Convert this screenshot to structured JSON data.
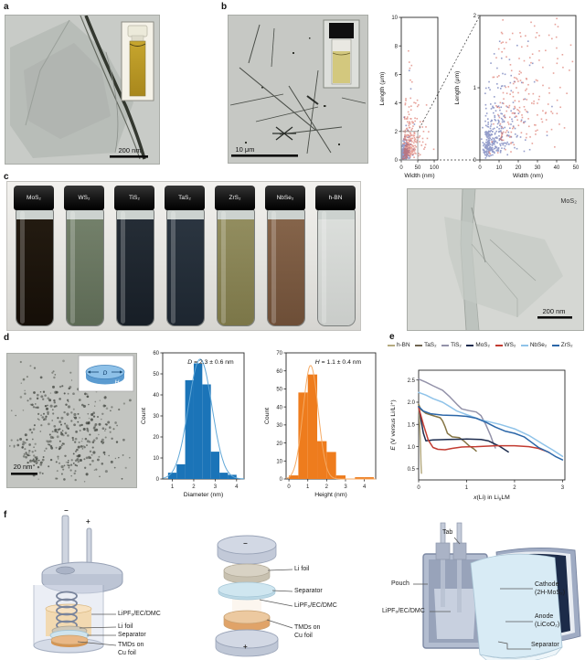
{
  "panels": {
    "a": {
      "letter": "a",
      "scale_bar": "200 nm"
    },
    "b": {
      "letter": "b",
      "scale_bar": "10 μm"
    },
    "c": {
      "letter": "c",
      "vials": [
        {
          "label": "MoS₂",
          "liquid": "#231b11",
          "liquid2": "#150e07"
        },
        {
          "label": "WS₂",
          "liquid": "#73806a",
          "liquid2": "#5c6954"
        },
        {
          "label": "TiS₂",
          "liquid": "#252d36",
          "liquid2": "#171e26"
        },
        {
          "label": "TaS₂",
          "liquid": "#2b3540",
          "liquid2": "#1d2630"
        },
        {
          "label": "ZrS₂",
          "liquid": "#928d5f",
          "liquid2": "#7b7648"
        },
        {
          "label": "NbSe₂",
          "liquid": "#85644a",
          "liquid2": "#6d4e37"
        },
        {
          "label": "h-BN",
          "liquid": "#dbdedb",
          "liquid2": "#c9ccc9"
        }
      ],
      "tem_label": "MoS₂",
      "tem_scale_bar": "200 nm"
    },
    "d": {
      "letter": "d",
      "scale_bar": "20 nm",
      "inset": {
        "diameter": "D",
        "height": "H"
      }
    },
    "e": {
      "letter": "e",
      "legend": [
        {
          "label": "h-BN",
          "color": "#b5aa80"
        },
        {
          "label": "TaS₂",
          "color": "#6f6450"
        },
        {
          "label": "TiS₂",
          "color": "#9392a9"
        },
        {
          "label": "MoS₂",
          "color": "#1d2c4e"
        },
        {
          "label": "WS₂",
          "color": "#c23b31"
        },
        {
          "label": "NbSe₂",
          "color": "#8fc3e9"
        },
        {
          "label": "ZrS₂",
          "color": "#2b66a8"
        }
      ]
    },
    "f": {
      "letter": "f",
      "minus": "−",
      "plus": "+",
      "electrolyte": "LiPF₆/EC/DMC",
      "li_foil": "Li foil",
      "separator": "Separator",
      "tmds_line1": "TMDs on",
      "tmds_line2": "Cu foil",
      "tab": "Tab",
      "pouch": "Pouch",
      "cathode_line1": "Cathode",
      "cathode_line2": "(2H-MoS₂)",
      "anode_line1": "Anode",
      "anode_line2": "(LiCoO₂)"
    }
  },
  "chart_data": [
    {
      "id": "scatter-left",
      "type": "scatter",
      "xlabel": "Width (nm)",
      "ylabel": "Length (μm)",
      "xlim": [
        0,
        111
      ],
      "ylim": [
        0,
        10
      ],
      "xticks": [
        0,
        50,
        100
      ],
      "yticks": [
        0,
        2,
        4,
        6,
        8,
        10
      ],
      "series": [
        {
          "name": "short-narrow",
          "color": "#3f4fa1",
          "n": 330,
          "seed": 11,
          "width_median_nm": 7,
          "width_log_sigma": 0.6,
          "length_median_um": 0.3,
          "length_log_sigma": 0.7,
          "corr_exp": 0.5
        },
        {
          "name": "long-wide",
          "color": "#d4584a",
          "n": 270,
          "seed": 23,
          "width_median_nm": 22,
          "width_log_sigma": 0.55,
          "length_median_um": 1.0,
          "length_log_sigma": 0.8,
          "corr_exp": 0.45
        }
      ],
      "zoom_box": {
        "x": [
          0,
          50
        ],
        "y": [
          0,
          2
        ]
      }
    },
    {
      "id": "scatter-right",
      "type": "scatter",
      "xlabel": "Width (nm)",
      "ylabel": "Length (μm)",
      "xlim": [
        0,
        50
      ],
      "ylim": [
        0,
        2
      ],
      "xticks": [
        0,
        10,
        20,
        30,
        40,
        50
      ],
      "yticks": [
        0,
        1,
        2
      ],
      "series_from": "scatter-left"
    },
    {
      "id": "hist-diameter",
      "type": "bar",
      "color": "#1b74b8",
      "curve_color": "#61a7d7",
      "xlabel": "Diameter (nm)",
      "ylabel": "Count",
      "xlim": [
        0.55,
        4.35
      ],
      "ylim": [
        0,
        60
      ],
      "xticks": [
        1,
        2,
        3,
        4
      ],
      "yticks": [
        0,
        10,
        20,
        30,
        40,
        50,
        60
      ],
      "bin_start": 0.8,
      "bin_width": 0.4,
      "counts": [
        3,
        7,
        47,
        55,
        45,
        13,
        3,
        2
      ],
      "gauss": {
        "amp": 57,
        "mean": 2.3,
        "sd": 0.55
      },
      "annotation": [
        {
          "t": "D",
          "i": 1
        },
        {
          "t": " = 2.3 ± 0.6 nm"
        }
      ]
    },
    {
      "id": "hist-height",
      "type": "bar",
      "color": "#ee7c1d",
      "curve_color": "#f5aa64",
      "xlabel": "Height (nm)",
      "ylabel": "Count",
      "xlim": [
        -0.15,
        4.6
      ],
      "ylim": [
        0,
        70
      ],
      "xticks": [
        0,
        1,
        2,
        3,
        4
      ],
      "yticks": [
        0,
        10,
        20,
        30,
        40,
        50,
        60,
        70
      ],
      "bin_start": 0,
      "bin_width": 0.5,
      "counts": [
        2,
        48,
        58,
        21,
        15,
        2,
        0,
        1,
        1
      ],
      "gauss": {
        "amp": 63,
        "mean": 1.15,
        "sd": 0.4
      },
      "annotation": [
        {
          "t": "H",
          "i": 1
        },
        {
          "t": " = 1.1 ± 0.4 nm"
        }
      ]
    },
    {
      "id": "voltage",
      "type": "line",
      "xlabel_parts": [
        {
          "t": "x",
          "i": 1
        },
        {
          "t": "(Li) in Li"
        },
        {
          "t": "x",
          "sub": 1
        },
        {
          "t": "LM"
        }
      ],
      "ylabel_parts": [
        {
          "t": "E",
          "i": 1
        },
        {
          "t": " (V versus Li/Li⁺)"
        }
      ],
      "xlim": [
        0,
        3.05
      ],
      "ylim": [
        0.25,
        2.72
      ],
      "xticks": [
        0,
        1,
        2,
        3
      ],
      "yticks": [
        0.5,
        1.0,
        1.5,
        2.0,
        2.5
      ],
      "ydecimals": 1,
      "series": [
        {
          "name": "h-BN",
          "color": "#b5aa80",
          "points": [
            [
              0,
              1.93
            ],
            [
              0.02,
              1.6
            ],
            [
              0.04,
              1.0
            ],
            [
              0.05,
              0.6
            ],
            [
              0.06,
              0.4
            ]
          ]
        },
        {
          "name": "TaS₂",
          "color": "#857545",
          "points": [
            [
              0,
              1.95
            ],
            [
              0.05,
              1.83
            ],
            [
              0.15,
              1.75
            ],
            [
              0.3,
              1.7
            ],
            [
              0.45,
              1.65
            ],
            [
              0.5,
              1.58
            ],
            [
              0.55,
              1.45
            ],
            [
              0.6,
              1.3
            ],
            [
              0.7,
              1.22
            ],
            [
              0.85,
              1.2
            ],
            [
              0.95,
              1.12
            ],
            [
              1.05,
              1.02
            ],
            [
              1.15,
              0.95
            ],
            [
              1.2,
              0.9
            ]
          ]
        },
        {
          "name": "TiS₂",
          "color": "#9392a9",
          "points": [
            [
              0,
              2.52
            ],
            [
              0.15,
              2.45
            ],
            [
              0.3,
              2.37
            ],
            [
              0.5,
              2.27
            ],
            [
              0.65,
              2.12
            ],
            [
              0.8,
              1.95
            ],
            [
              0.9,
              1.85
            ],
            [
              1.05,
              1.81
            ],
            [
              1.2,
              1.78
            ],
            [
              1.3,
              1.7
            ],
            [
              1.4,
              1.5
            ],
            [
              1.5,
              1.25
            ],
            [
              1.55,
              1.1
            ],
            [
              1.6,
              0.97
            ]
          ]
        },
        {
          "name": "MoS₂",
          "color": "#1d2c4e",
          "points": [
            [
              0,
              1.9
            ],
            [
              0.05,
              1.6
            ],
            [
              0.1,
              1.3
            ],
            [
              0.15,
              1.13
            ],
            [
              0.3,
              1.15
            ],
            [
              0.6,
              1.16
            ],
            [
              1.0,
              1.17
            ],
            [
              1.3,
              1.16
            ],
            [
              1.45,
              1.13
            ],
            [
              1.55,
              1.08
            ],
            [
              1.7,
              1.0
            ],
            [
              1.8,
              0.93
            ],
            [
              1.87,
              0.88
            ]
          ]
        },
        {
          "name": "WS₂",
          "color": "#c23b31",
          "points": [
            [
              0,
              1.88
            ],
            [
              0.1,
              1.5
            ],
            [
              0.2,
              1.15
            ],
            [
              0.3,
              0.98
            ],
            [
              0.4,
              0.94
            ],
            [
              0.55,
              0.93
            ],
            [
              0.7,
              0.96
            ],
            [
              0.9,
              0.99
            ],
            [
              1.2,
              1.0
            ],
            [
              1.6,
              1.02
            ],
            [
              2.0,
              1.02
            ],
            [
              2.3,
              1.0
            ],
            [
              2.5,
              0.96
            ],
            [
              2.65,
              0.9
            ],
            [
              2.72,
              0.87
            ]
          ]
        },
        {
          "name": "NbSe₂",
          "color": "#8fc3e9",
          "points": [
            [
              0,
              2.22
            ],
            [
              0.15,
              2.16
            ],
            [
              0.3,
              2.08
            ],
            [
              0.5,
              2.0
            ],
            [
              0.65,
              1.9
            ],
            [
              0.8,
              1.8
            ],
            [
              0.95,
              1.74
            ],
            [
              1.1,
              1.68
            ],
            [
              1.3,
              1.6
            ],
            [
              1.5,
              1.55
            ],
            [
              1.7,
              1.5
            ],
            [
              2.0,
              1.4
            ],
            [
              2.3,
              1.25
            ],
            [
              2.6,
              1.05
            ],
            [
              2.8,
              0.92
            ],
            [
              3.0,
              0.78
            ]
          ]
        },
        {
          "name": "ZrS₂",
          "color": "#2b66a8",
          "points": [
            [
              0,
              1.9
            ],
            [
              0.1,
              1.8
            ],
            [
              0.25,
              1.74
            ],
            [
              0.5,
              1.71
            ],
            [
              0.8,
              1.7
            ],
            [
              1.0,
              1.68
            ],
            [
              1.2,
              1.64
            ],
            [
              1.4,
              1.55
            ],
            [
              1.6,
              1.44
            ],
            [
              1.8,
              1.35
            ],
            [
              2.0,
              1.3
            ],
            [
              2.2,
              1.22
            ],
            [
              2.35,
              1.1
            ],
            [
              2.5,
              0.98
            ],
            [
              2.7,
              0.88
            ],
            [
              2.85,
              0.78
            ],
            [
              3.0,
              0.7
            ]
          ]
        }
      ]
    }
  ]
}
